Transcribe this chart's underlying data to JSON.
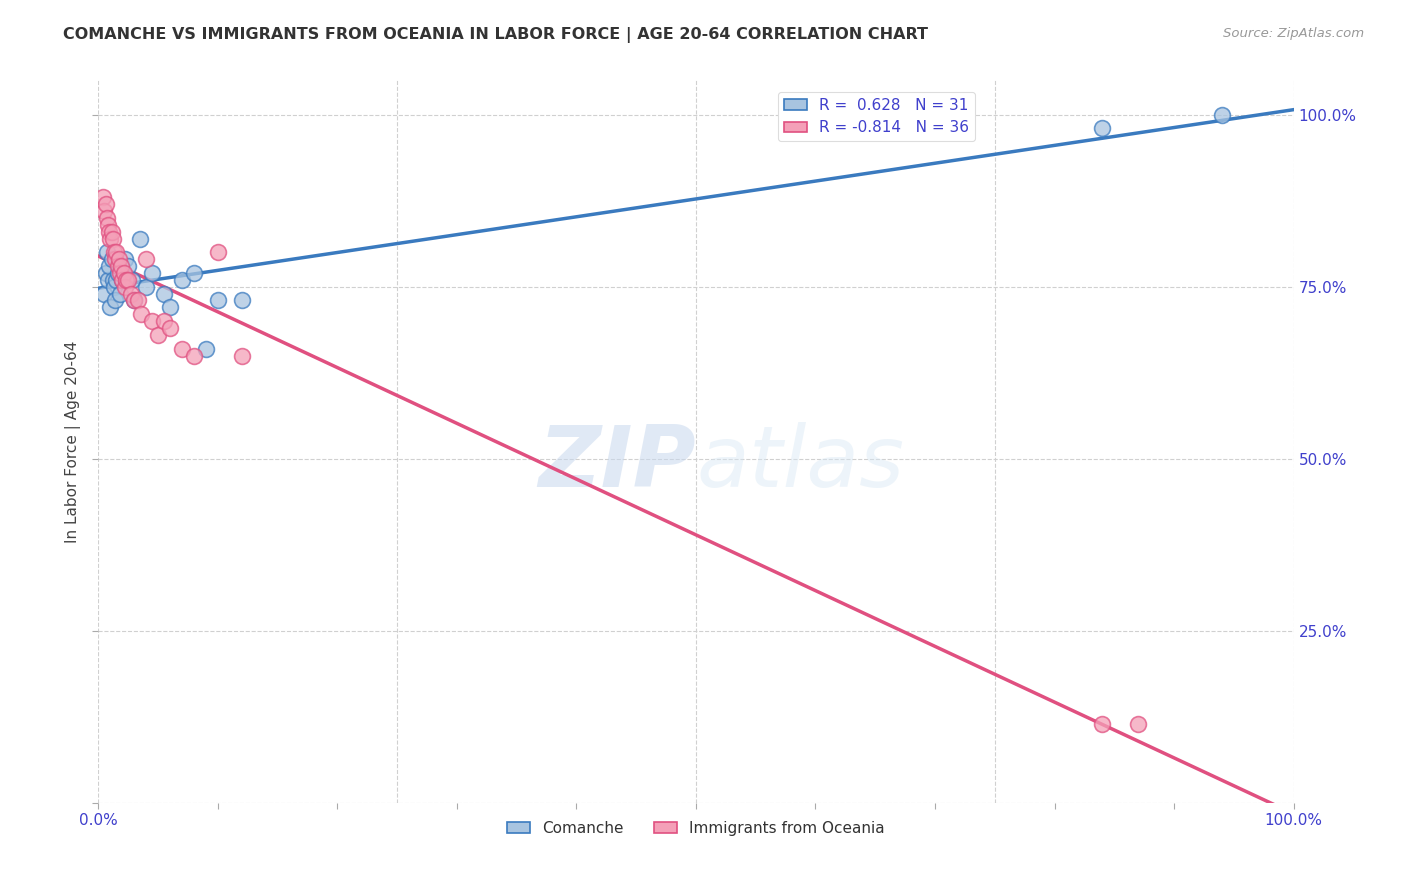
{
  "title": "COMANCHE VS IMMIGRANTS FROM OCEANIA IN LABOR FORCE | AGE 20-64 CORRELATION CHART",
  "source": "Source: ZipAtlas.com",
  "ylabel": "In Labor Force | Age 20-64",
  "R_blue": 0.628,
  "N_blue": 31,
  "R_pink": -0.814,
  "N_pink": 36,
  "legend_blue": "Comanche",
  "legend_pink": "Immigrants from Oceania",
  "blue_scatter_x": [
    0.005,
    0.006,
    0.007,
    0.008,
    0.009,
    0.01,
    0.011,
    0.012,
    0.013,
    0.014,
    0.015,
    0.016,
    0.017,
    0.018,
    0.02,
    0.022,
    0.025,
    0.028,
    0.03,
    0.035,
    0.04,
    0.045,
    0.055,
    0.06,
    0.07,
    0.08,
    0.09,
    0.1,
    0.12,
    0.84,
    0.94
  ],
  "blue_scatter_y": [
    0.74,
    0.77,
    0.8,
    0.76,
    0.78,
    0.72,
    0.79,
    0.76,
    0.75,
    0.73,
    0.76,
    0.77,
    0.78,
    0.74,
    0.76,
    0.79,
    0.78,
    0.76,
    0.73,
    0.82,
    0.75,
    0.77,
    0.74,
    0.72,
    0.76,
    0.77,
    0.66,
    0.73,
    0.73,
    0.98,
    1.0
  ],
  "pink_scatter_x": [
    0.004,
    0.005,
    0.006,
    0.007,
    0.008,
    0.009,
    0.01,
    0.011,
    0.012,
    0.013,
    0.014,
    0.015,
    0.016,
    0.017,
    0.018,
    0.019,
    0.02,
    0.021,
    0.022,
    0.023,
    0.025,
    0.027,
    0.03,
    0.033,
    0.036,
    0.04,
    0.045,
    0.05,
    0.055,
    0.06,
    0.07,
    0.08,
    0.1,
    0.12,
    0.84,
    0.87
  ],
  "pink_scatter_y": [
    0.88,
    0.86,
    0.87,
    0.85,
    0.84,
    0.83,
    0.82,
    0.83,
    0.82,
    0.8,
    0.79,
    0.8,
    0.78,
    0.79,
    0.77,
    0.78,
    0.76,
    0.77,
    0.75,
    0.76,
    0.76,
    0.74,
    0.73,
    0.73,
    0.71,
    0.79,
    0.7,
    0.68,
    0.7,
    0.69,
    0.66,
    0.65,
    0.8,
    0.65,
    0.115,
    0.115
  ],
  "blue_color": "#a8c4e0",
  "pink_color": "#f4a0b8",
  "blue_line_color": "#3a7abf",
  "pink_line_color": "#e05080",
  "bg_color": "#ffffff",
  "grid_color": "#d0d0d0",
  "title_color": "#333333",
  "source_color": "#999999",
  "axis_tick_color": "#4040cc",
  "ylabel_color": "#444444",
  "ylim": [
    0.0,
    1.05
  ],
  "xlim": [
    0.0,
    1.0
  ]
}
